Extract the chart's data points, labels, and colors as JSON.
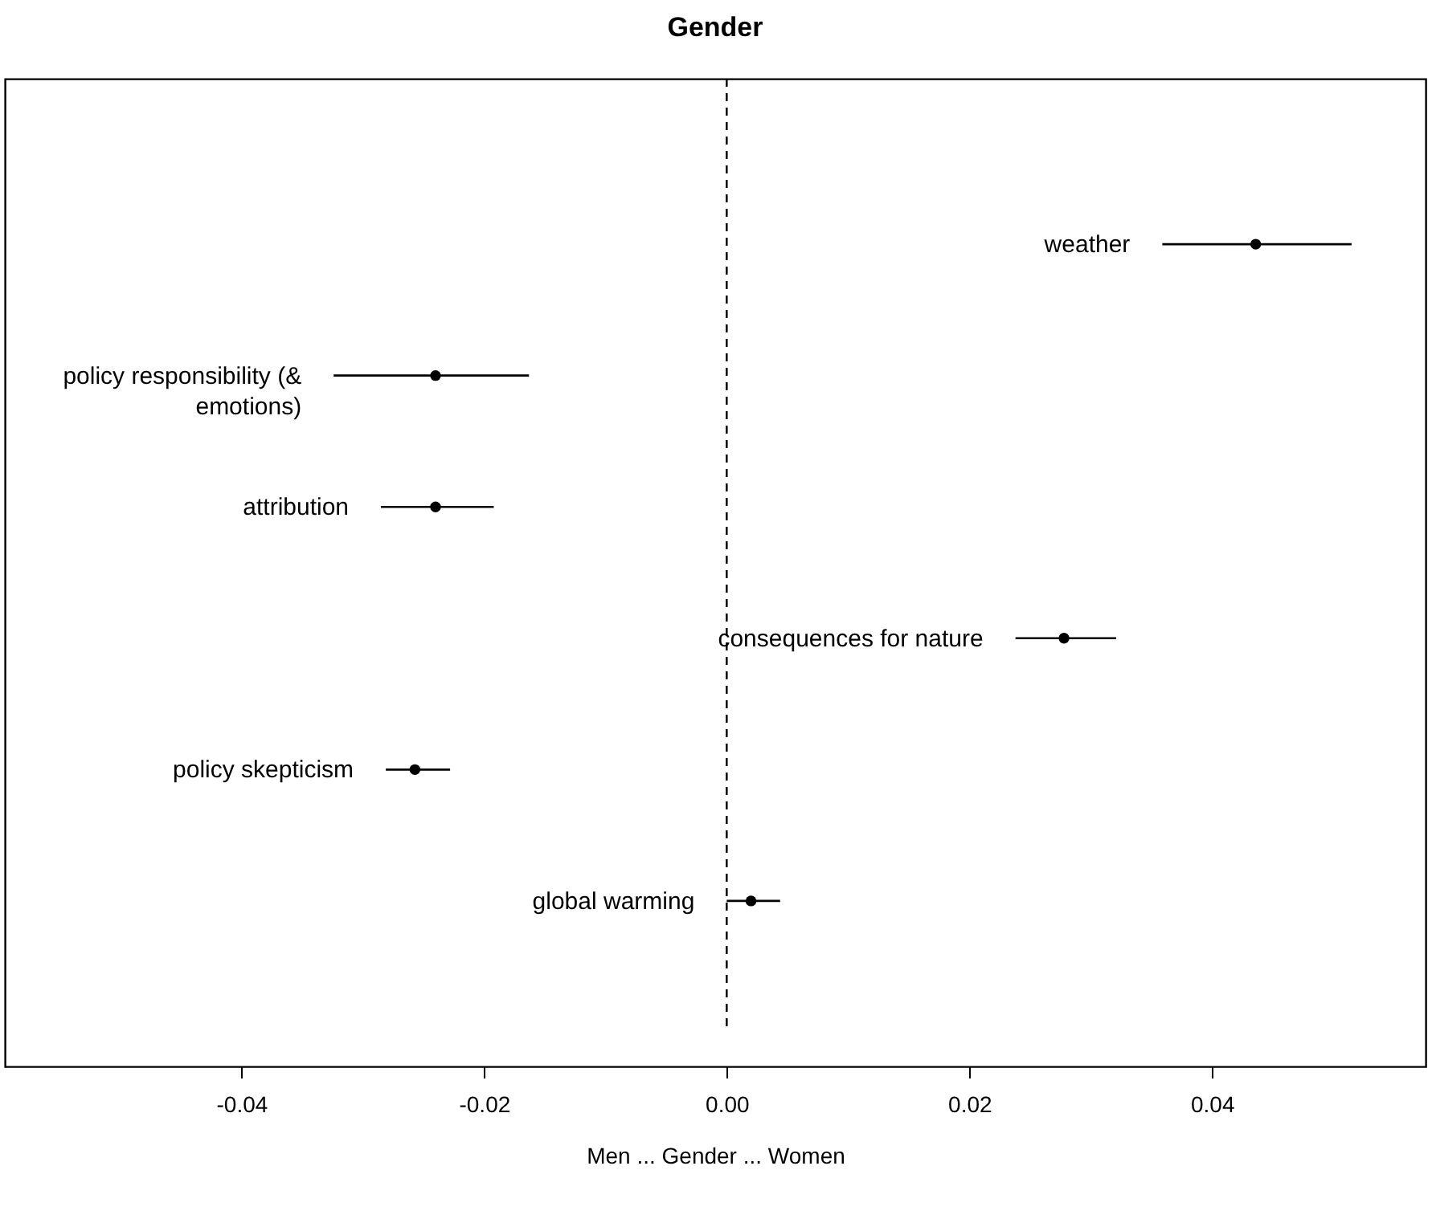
{
  "chart_data": {
    "type": "scatter",
    "title": "Gender",
    "xlabel": "Men ... Gender ... Women",
    "orientation": "horizontal",
    "categories": [
      "weather",
      "policy responsibility (&\nemotions)",
      "attribution",
      "consequences for nature",
      "policy skepticism",
      "global warming"
    ],
    "series": [
      {
        "color": "#000000",
        "values": [
          0.0436,
          -0.024,
          -0.024,
          0.0278,
          -0.0257,
          0.002
        ],
        "errors": [
          [
            0.0359,
            0.0515
          ],
          [
            -0.0324,
            -0.0163
          ],
          [
            -0.0285,
            -0.0192
          ],
          [
            0.0238,
            0.0321
          ],
          [
            -0.0281,
            -0.0228
          ],
          [
            0.0,
            0.0044
          ]
        ]
      }
    ],
    "xlim": [
      -0.0595,
      0.0576
    ],
    "xticks": [
      {
        "value": -0.04,
        "label": "-0.04"
      },
      {
        "value": -0.02,
        "label": "-0.02"
      },
      {
        "value": 0,
        "label": "0.00"
      },
      {
        "value": 0.02,
        "label": "0.02"
      },
      {
        "value": 0.04,
        "label": "0.04"
      }
    ],
    "ref_lines": [
      {
        "axis": "x",
        "value": 0,
        "line_style": "dashed",
        "color": "#000000"
      }
    ],
    "tick_labels": "x",
    "grid": false,
    "marker": "circle"
  }
}
